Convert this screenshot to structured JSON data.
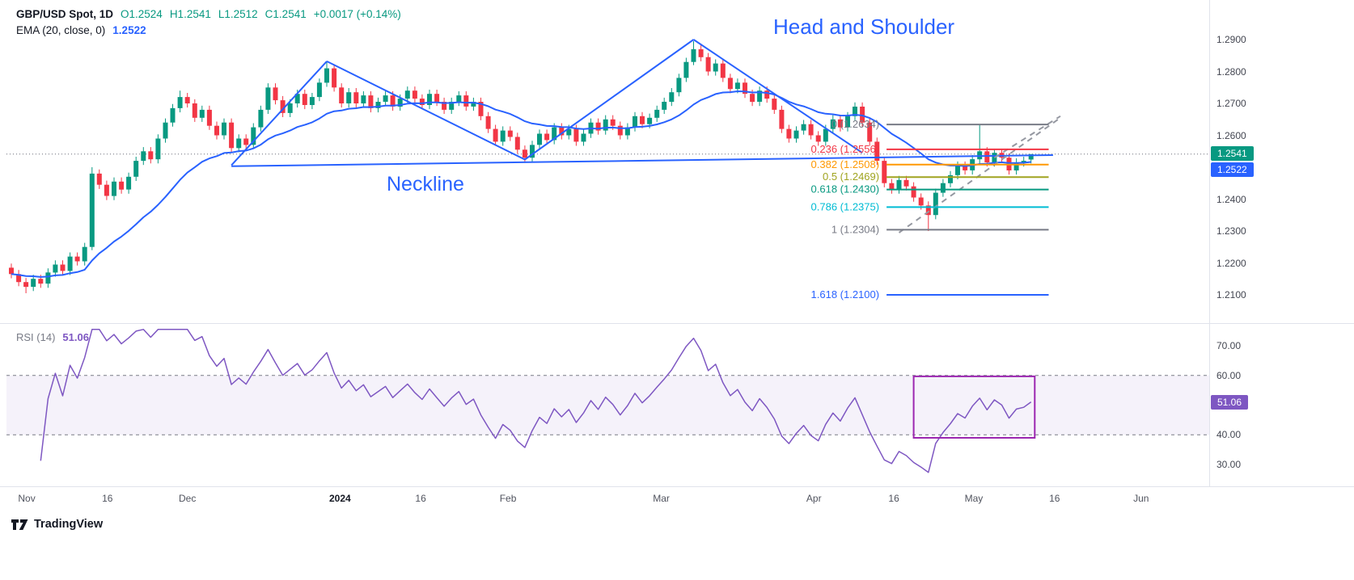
{
  "header": {
    "symbol": "GBP/USD Spot, 1D",
    "open": "O1.2524",
    "high": "H1.2541",
    "low": "L1.2512",
    "close": "C1.2541",
    "change": "+0.0017 (+0.14%)",
    "ema_label": "EMA (20, close, 0)",
    "ema_value": "1.2522"
  },
  "annotations": {
    "pattern_title": "Head and Shoulder",
    "neckline": "Neckline"
  },
  "rsi": {
    "label": "RSI (14)",
    "value_text": "51.06"
  },
  "badges": {
    "last_price": {
      "text": "1.2541",
      "price": 1.2541,
      "bg": "#089981"
    },
    "ema": {
      "text": "1.2522",
      "price": 1.2522,
      "bg": "#2962FF"
    },
    "rsi": {
      "text": "51.06",
      "value": 51.06,
      "bg": "#7E57C2"
    }
  },
  "branding": {
    "name": "TradingView"
  },
  "colors": {
    "up": "#089981",
    "down": "#F23645",
    "ema": "#2962FF",
    "pattern": "#2962FF",
    "rsi": "#7E57C2",
    "rsi_band": "rgba(126,87,194,0.08)",
    "box": "#9C27B0",
    "axis_text": "#434651",
    "separator": "#E0E3EB",
    "price_line": "#6A6D78",
    "channel": "#9598A1"
  },
  "price_axis": {
    "labels": [
      {
        "text": "1.2900",
        "price": 1.29
      },
      {
        "text": "1.2800",
        "price": 1.28
      },
      {
        "text": "1.2700",
        "price": 1.27
      },
      {
        "text": "1.2600",
        "price": 1.26
      },
      {
        "text": "1.2400",
        "price": 1.24
      },
      {
        "text": "1.2300",
        "price": 1.23
      },
      {
        "text": "1.2200",
        "price": 1.22
      },
      {
        "text": "1.2100",
        "price": 1.21
      }
    ]
  },
  "rsi_axis": {
    "labels": [
      {
        "text": "70.00",
        "value": 70
      },
      {
        "text": "60.00",
        "value": 60
      },
      {
        "text": "40.00",
        "value": 40
      },
      {
        "text": "30.00",
        "value": 30
      }
    ]
  },
  "time_axis": [
    {
      "text": "Nov",
      "i": 2.1
    },
    {
      "text": "16",
      "i": 13.1
    },
    {
      "text": "Dec",
      "i": 24
    },
    {
      "text": "2024",
      "i": 44.8,
      "major": true
    },
    {
      "text": "16",
      "i": 55.8
    },
    {
      "text": "Feb",
      "i": 67.7
    },
    {
      "text": "Mar",
      "i": 88.6
    },
    {
      "text": "Apr",
      "i": 109.4
    },
    {
      "text": "16",
      "i": 120.3
    },
    {
      "text": "May",
      "i": 131.2
    },
    {
      "text": "16",
      "i": 142.2
    },
    {
      "text": "Jun",
      "i": 154
    }
  ],
  "chart_data": {
    "type": "candlestick",
    "title": "GBP/USD Spot, 1D",
    "price_ylim": [
      1.205,
      1.2955
    ],
    "ohlc": [
      [
        1.2185,
        1.2198,
        1.2152,
        1.2165
      ],
      [
        1.2165,
        1.2178,
        1.2127,
        1.214
      ],
      [
        1.214,
        1.2153,
        1.2105,
        1.2125
      ],
      [
        1.2125,
        1.2163,
        1.2112,
        1.215
      ],
      [
        1.215,
        1.2163,
        1.2122,
        1.2135
      ],
      [
        1.2135,
        1.2183,
        1.2122,
        1.217
      ],
      [
        1.217,
        1.2208,
        1.2157,
        1.2195
      ],
      [
        1.2195,
        1.2208,
        1.2162,
        1.2175
      ],
      [
        1.2175,
        1.2233,
        1.2162,
        1.222
      ],
      [
        1.222,
        1.2233,
        1.2192,
        1.2205
      ],
      [
        1.2205,
        1.2263,
        1.2192,
        1.225
      ],
      [
        1.225,
        1.25,
        1.224,
        1.248
      ],
      [
        1.248,
        1.2493,
        1.2432,
        1.2445
      ],
      [
        1.2445,
        1.2458,
        1.2397,
        1.241
      ],
      [
        1.241,
        1.2468,
        1.2397,
        1.2455
      ],
      [
        1.2455,
        1.2468,
        1.2417,
        1.243
      ],
      [
        1.243,
        1.2483,
        1.2417,
        1.247
      ],
      [
        1.247,
        1.2533,
        1.2457,
        1.252
      ],
      [
        1.252,
        1.2563,
        1.2507,
        1.255
      ],
      [
        1.255,
        1.2563,
        1.2512,
        1.2525
      ],
      [
        1.2525,
        1.2603,
        1.2512,
        1.259
      ],
      [
        1.259,
        1.2653,
        1.2577,
        1.264
      ],
      [
        1.264,
        1.2698,
        1.2627,
        1.2685
      ],
      [
        1.2685,
        1.274,
        1.2672,
        1.272
      ],
      [
        1.272,
        1.2733,
        1.2687,
        1.27
      ],
      [
        1.27,
        1.2713,
        1.2642,
        1.2655
      ],
      [
        1.2655,
        1.2693,
        1.2642,
        1.268
      ],
      [
        1.268,
        1.2693,
        1.2617,
        1.263
      ],
      [
        1.263,
        1.2643,
        1.2587,
        1.26
      ],
      [
        1.26,
        1.2653,
        1.2587,
        1.264
      ],
      [
        1.264,
        1.2653,
        1.2547,
        1.256
      ],
      [
        1.256,
        1.2603,
        1.2547,
        1.259
      ],
      [
        1.259,
        1.2603,
        1.2557,
        1.257
      ],
      [
        1.257,
        1.2638,
        1.2557,
        1.2625
      ],
      [
        1.2625,
        1.2693,
        1.2612,
        1.268
      ],
      [
        1.268,
        1.2763,
        1.2667,
        1.275
      ],
      [
        1.275,
        1.2763,
        1.2697,
        1.271
      ],
      [
        1.271,
        1.2723,
        1.2657,
        1.267
      ],
      [
        1.267,
        1.2713,
        1.2657,
        1.27
      ],
      [
        1.27,
        1.2743,
        1.2687,
        1.273
      ],
      [
        1.273,
        1.2743,
        1.2682,
        1.2695
      ],
      [
        1.2695,
        1.2733,
        1.2682,
        1.272
      ],
      [
        1.272,
        1.2778,
        1.2707,
        1.2765
      ],
      [
        1.2765,
        1.283,
        1.2752,
        1.281
      ],
      [
        1.281,
        1.2823,
        1.2737,
        1.275
      ],
      [
        1.275,
        1.2763,
        1.2687,
        1.27
      ],
      [
        1.27,
        1.2748,
        1.2687,
        1.2735
      ],
      [
        1.2735,
        1.2748,
        1.2687,
        1.27
      ],
      [
        1.27,
        1.2738,
        1.2687,
        1.2725
      ],
      [
        1.2725,
        1.2738,
        1.2672,
        1.2685
      ],
      [
        1.2685,
        1.2718,
        1.2672,
        1.2705
      ],
      [
        1.2705,
        1.2738,
        1.2692,
        1.2725
      ],
      [
        1.2725,
        1.2738,
        1.2677,
        1.269
      ],
      [
        1.269,
        1.2728,
        1.2677,
        1.2715
      ],
      [
        1.2715,
        1.2753,
        1.2702,
        1.274
      ],
      [
        1.274,
        1.2753,
        1.2702,
        1.2715
      ],
      [
        1.2715,
        1.2728,
        1.2682,
        1.2695
      ],
      [
        1.2695,
        1.2743,
        1.2682,
        1.273
      ],
      [
        1.273,
        1.2743,
        1.2692,
        1.2705
      ],
      [
        1.2705,
        1.2718,
        1.2667,
        1.268
      ],
      [
        1.268,
        1.2718,
        1.2667,
        1.2705
      ],
      [
        1.2705,
        1.2738,
        1.2692,
        1.2725
      ],
      [
        1.2725,
        1.2738,
        1.2677,
        1.269
      ],
      [
        1.269,
        1.2718,
        1.2677,
        1.2705
      ],
      [
        1.2705,
        1.2718,
        1.2647,
        1.266
      ],
      [
        1.266,
        1.2673,
        1.2607,
        1.262
      ],
      [
        1.262,
        1.2633,
        1.2567,
        1.258
      ],
      [
        1.258,
        1.2628,
        1.2567,
        1.2615
      ],
      [
        1.2615,
        1.2628,
        1.2582,
        1.2595
      ],
      [
        1.2595,
        1.2608,
        1.2542,
        1.2555
      ],
      [
        1.2555,
        1.2568,
        1.2518,
        1.253
      ],
      [
        1.253,
        1.2583,
        1.2517,
        1.257
      ],
      [
        1.257,
        1.2618,
        1.2557,
        1.2605
      ],
      [
        1.2605,
        1.2618,
        1.2572,
        1.2585
      ],
      [
        1.2585,
        1.2638,
        1.2572,
        1.2625
      ],
      [
        1.2625,
        1.2638,
        1.2587,
        1.26
      ],
      [
        1.26,
        1.2633,
        1.2587,
        1.262
      ],
      [
        1.262,
        1.2633,
        1.2567,
        1.258
      ],
      [
        1.258,
        1.2618,
        1.2567,
        1.2605
      ],
      [
        1.2605,
        1.2653,
        1.2592,
        1.264
      ],
      [
        1.264,
        1.2653,
        1.2602,
        1.2615
      ],
      [
        1.2615,
        1.2663,
        1.2602,
        1.265
      ],
      [
        1.265,
        1.2663,
        1.2617,
        1.263
      ],
      [
        1.263,
        1.2643,
        1.2587,
        1.26
      ],
      [
        1.26,
        1.2638,
        1.2587,
        1.2625
      ],
      [
        1.2625,
        1.2673,
        1.2612,
        1.266
      ],
      [
        1.266,
        1.2673,
        1.2622,
        1.2635
      ],
      [
        1.2635,
        1.2668,
        1.2622,
        1.2655
      ],
      [
        1.2655,
        1.2693,
        1.2642,
        1.268
      ],
      [
        1.268,
        1.2718,
        1.2667,
        1.2705
      ],
      [
        1.2705,
        1.2748,
        1.2692,
        1.2735
      ],
      [
        1.2735,
        1.2793,
        1.2722,
        1.278
      ],
      [
        1.278,
        1.2843,
        1.2767,
        1.283
      ],
      [
        1.283,
        1.2895,
        1.282,
        1.287
      ],
      [
        1.287,
        1.2883,
        1.2832,
        1.2845
      ],
      [
        1.2845,
        1.2858,
        1.2787,
        1.28
      ],
      [
        1.28,
        1.2838,
        1.2787,
        1.2825
      ],
      [
        1.2825,
        1.2838,
        1.2767,
        1.278
      ],
      [
        1.278,
        1.2793,
        1.2732,
        1.2745
      ],
      [
        1.2745,
        1.2778,
        1.2732,
        1.2765
      ],
      [
        1.2765,
        1.2778,
        1.2717,
        1.273
      ],
      [
        1.273,
        1.2743,
        1.2692,
        1.2705
      ],
      [
        1.2705,
        1.2753,
        1.2692,
        1.274
      ],
      [
        1.274,
        1.2753,
        1.2702,
        1.2715
      ],
      [
        1.2715,
        1.2728,
        1.2667,
        1.268
      ],
      [
        1.268,
        1.2693,
        1.2607,
        1.262
      ],
      [
        1.262,
        1.2633,
        1.2577,
        1.259
      ],
      [
        1.259,
        1.2628,
        1.2577,
        1.2615
      ],
      [
        1.2615,
        1.2648,
        1.2602,
        1.2635
      ],
      [
        1.2635,
        1.2648,
        1.2587,
        1.26
      ],
      [
        1.26,
        1.2613,
        1.2567,
        1.258
      ],
      [
        1.258,
        1.2633,
        1.2567,
        1.262
      ],
      [
        1.262,
        1.2663,
        1.2607,
        1.265
      ],
      [
        1.265,
        1.2663,
        1.2612,
        1.2625
      ],
      [
        1.2625,
        1.2673,
        1.2612,
        1.266
      ],
      [
        1.266,
        1.2703,
        1.2647,
        1.269
      ],
      [
        1.269,
        1.2703,
        1.2627,
        1.264
      ],
      [
        1.264,
        1.2653,
        1.2567,
        1.258
      ],
      [
        1.258,
        1.2593,
        1.2507,
        1.252
      ],
      [
        1.252,
        1.2533,
        1.2437,
        1.245
      ],
      [
        1.245,
        1.2463,
        1.2417,
        1.243
      ],
      [
        1.243,
        1.2473,
        1.2417,
        1.246
      ],
      [
        1.246,
        1.2473,
        1.2427,
        1.244
      ],
      [
        1.244,
        1.2453,
        1.2392,
        1.2405
      ],
      [
        1.2405,
        1.2418,
        1.2367,
        1.238
      ],
      [
        1.238,
        1.2393,
        1.23,
        1.235
      ],
      [
        1.235,
        1.2433,
        1.2337,
        1.242
      ],
      [
        1.242,
        1.2463,
        1.2407,
        1.245
      ],
      [
        1.245,
        1.2488,
        1.2437,
        1.2475
      ],
      [
        1.2475,
        1.2518,
        1.2462,
        1.2505
      ],
      [
        1.2505,
        1.2518,
        1.2477,
        1.249
      ],
      [
        1.249,
        1.2538,
        1.2477,
        1.2525
      ],
      [
        1.2525,
        1.2635,
        1.2512,
        1.255
      ],
      [
        1.255,
        1.2563,
        1.2502,
        1.2515
      ],
      [
        1.2515,
        1.2558,
        1.2502,
        1.2545
      ],
      [
        1.2545,
        1.2558,
        1.2517,
        1.253
      ],
      [
        1.253,
        1.2543,
        1.2477,
        1.249
      ],
      [
        1.249,
        1.2528,
        1.2477,
        1.2515
      ],
      [
        1.2515,
        1.2533,
        1.2502,
        1.252
      ],
      [
        1.2524,
        1.2541,
        1.2512,
        1.2541
      ]
    ],
    "overlays": {
      "ema": {
        "period": 20,
        "color": "#2962FF",
        "last_value": 1.2522
      },
      "last_price_line": 1.2541,
      "pattern": {
        "name": "Head and Shoulder",
        "neckline": [
          [
            30,
            1.2503
          ],
          [
            142,
            1.2538
          ]
        ],
        "zigzag": [
          [
            30,
            1.2506
          ],
          [
            43,
            1.2832
          ],
          [
            70,
            1.2524
          ],
          [
            93,
            1.29
          ],
          [
            116,
            1.2545
          ]
        ]
      },
      "channel_dashed": [
        [
          [
            121,
            1.2295
          ],
          [
            143,
            1.2655
          ]
        ],
        [
          [
            134,
            1.253
          ],
          [
            143,
            1.266
          ]
        ]
      ],
      "fib": {
        "start_i": 119.3,
        "end_i": 141.4,
        "levels": [
          {
            "label": "0",
            "value": 1.2634,
            "color": "#787B86"
          },
          {
            "label": "0.236",
            "value": 1.2556,
            "color": "#F23645"
          },
          {
            "label": "0.382",
            "value": 1.2508,
            "color": "#FF9800"
          },
          {
            "label": "0.5",
            "value": 1.2469,
            "color": "#A0A420"
          },
          {
            "label": "0.618",
            "value": 1.243,
            "color": "#089981"
          },
          {
            "label": "0.786",
            "value": 1.2375,
            "color": "#00BCD4"
          },
          {
            "label": "1",
            "value": 1.2304,
            "color": "#787B86"
          },
          {
            "label": "1.618",
            "value": 1.21,
            "color": "#2962FF"
          }
        ]
      }
    },
    "rsi": {
      "period": 14,
      "last_value": 51.06,
      "dashed_levels": [
        60,
        40
      ],
      "band": [
        40,
        60
      ],
      "ylim": [
        25,
        78
      ],
      "highlight_box": {
        "i_start": 123,
        "i_end": 139.5,
        "rsi_low": 39,
        "rsi_high": 59.7
      }
    }
  }
}
